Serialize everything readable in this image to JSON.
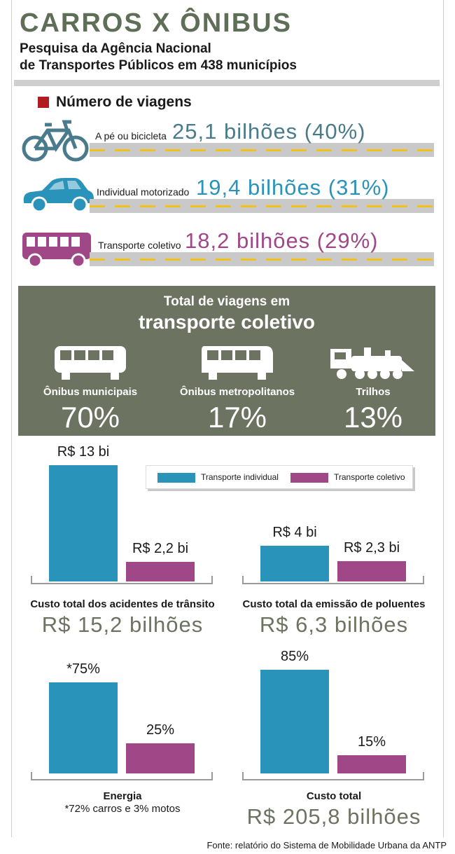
{
  "header": {
    "title": "CARROS X ÔNIBUS",
    "subtitle_line1": "Pesquisa da Agência Nacional",
    "subtitle_line2": "de Transportes Públicos em 438 municípios"
  },
  "trips": {
    "legend": "Número de viagens",
    "legend_color": "#b01c22",
    "rows": [
      {
        "label": "A pé ou bicicleta",
        "value": "25,1 bilhões (40%)",
        "icon": "bicycle-icon",
        "color": "#4a7b8c"
      },
      {
        "label": "Individual motorizado",
        "value": "19,4 bilhões (31%)",
        "icon": "car-icon",
        "color": "#2a93ba"
      },
      {
        "label": "Transporte coletivo",
        "value": "18,2 bilhões (29%)",
        "icon": "bus-icon",
        "color": "#a04788"
      }
    ]
  },
  "collective": {
    "heading1": "Total de viagens em",
    "heading2": "transporte coletivo",
    "items": [
      {
        "label": "Ônibus municipais",
        "value": "70%",
        "icon": "bus-icon"
      },
      {
        "label": "Ônibus metropolitanos",
        "value": "17%",
        "icon": "coach-icon"
      },
      {
        "label": "Trilhos",
        "value": "13%",
        "icon": "train-icon"
      }
    ]
  },
  "legend": {
    "individual": "Transporte individual",
    "collective": "Transporte coletivo",
    "individual_color": "#2a93ba",
    "collective_color": "#a04788"
  },
  "chart_data": [
    {
      "type": "bar",
      "categories": [
        "Transporte individual",
        "Transporte coletivo"
      ],
      "values": [
        13,
        2.2
      ],
      "value_labels": [
        "R$ 13 bi",
        "R$ 2,2 bi"
      ],
      "caption": "Custo total dos acidentes de trânsito",
      "total": "R$ 15,2 bilhões"
    },
    {
      "type": "bar",
      "categories": [
        "Transporte individual",
        "Transporte coletivo"
      ],
      "values": [
        4,
        2.3
      ],
      "value_labels": [
        "R$ 4 bi",
        "R$ 2,3 bi"
      ],
      "caption": "Custo total da emissão de poluentes",
      "total": "R$ 6,3 bilhões"
    },
    {
      "type": "bar",
      "categories": [
        "Transporte individual",
        "Transporte coletivo"
      ],
      "values": [
        75,
        25
      ],
      "value_labels": [
        "*75%",
        "25%"
      ],
      "caption": "Energia",
      "note": "*72% carros e 3% motos"
    },
    {
      "type": "bar",
      "categories": [
        "Transporte individual",
        "Transporte coletivo"
      ],
      "values": [
        85,
        15
      ],
      "value_labels": [
        "85%",
        "15%"
      ],
      "caption": "Custo total",
      "total": "R$ 205,8 bilhões"
    }
  ],
  "source": "Fonte: relatório do Sistema de Mobilidade Urbana da ANTP"
}
